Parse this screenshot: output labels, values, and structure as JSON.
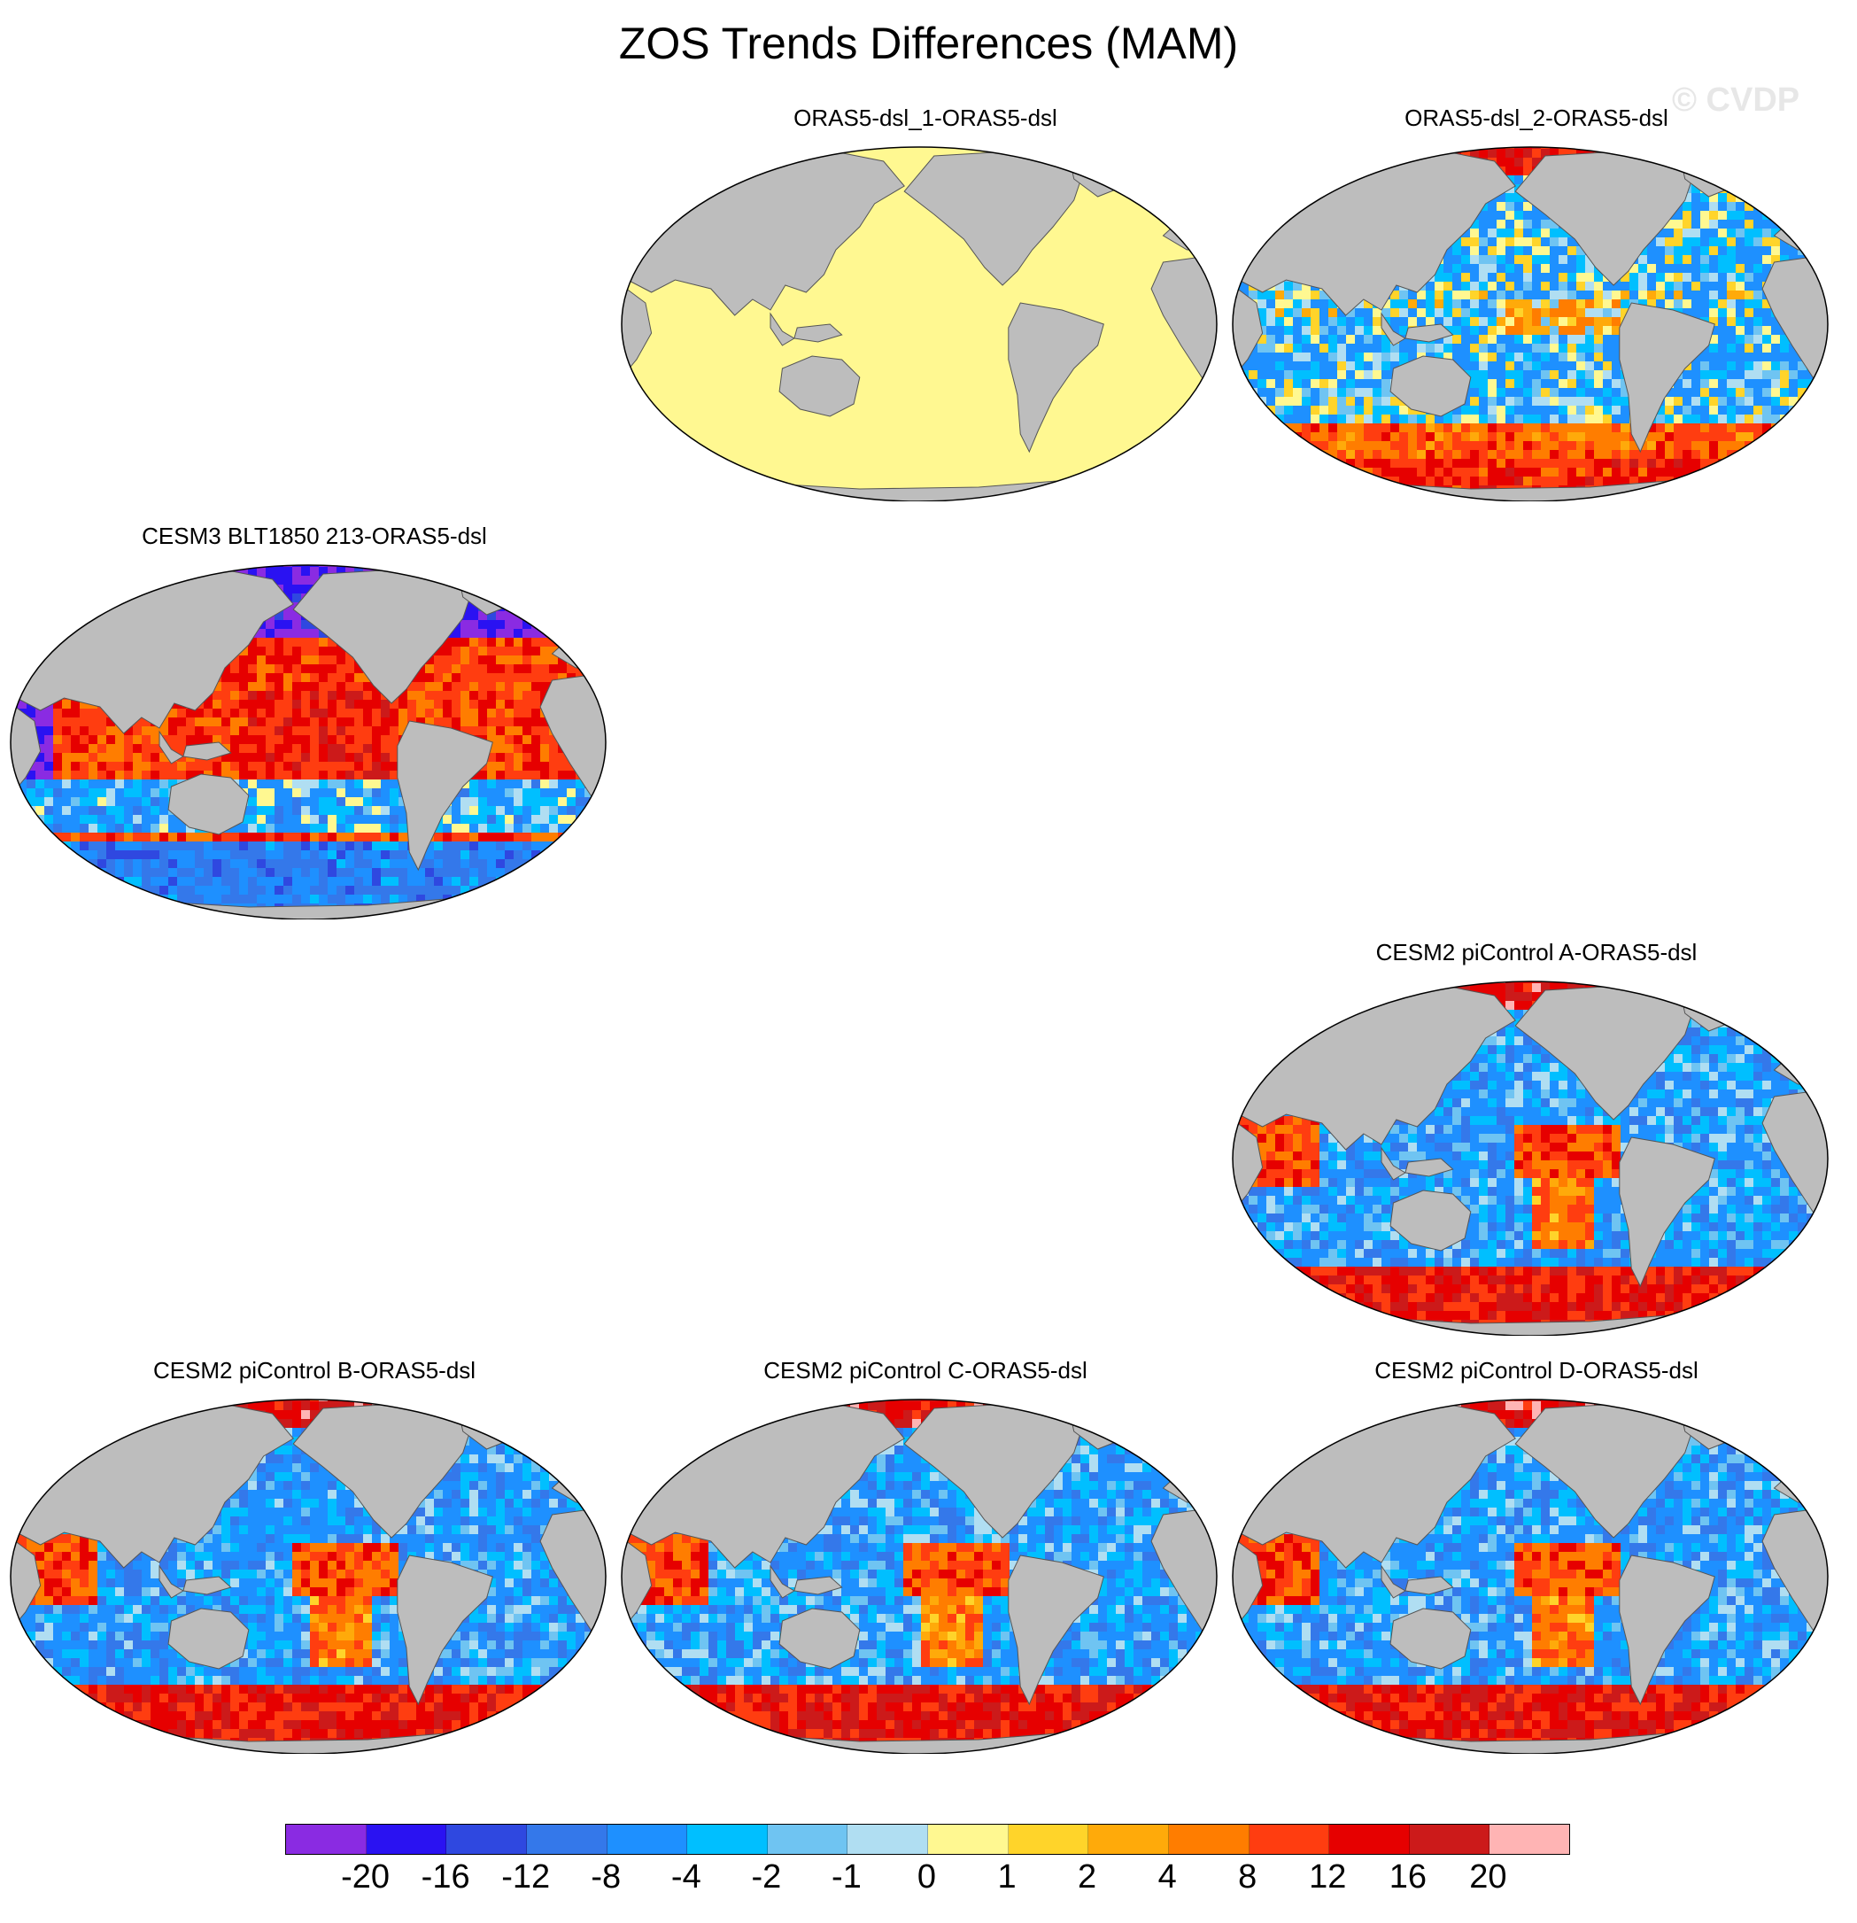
{
  "title": "ZOS Trends Differences (MAM)",
  "watermark": "© CVDP",
  "colors": {
    "land": "#bdbdbd",
    "ocean_zero": "#fff891",
    "missing": "#ffffff",
    "outline": "#000000"
  },
  "panels": [
    {
      "id": "p1",
      "label": "ORAS5-dsl_1-ORAS5-dsl",
      "pattern": "zero"
    },
    {
      "id": "p2",
      "label": "ORAS5-dsl_2-ORAS5-dsl",
      "pattern": "oras2"
    },
    {
      "id": "p3",
      "label": "CESM3 BLT1850 213-ORAS5-dsl",
      "pattern": "cesm3"
    },
    {
      "id": "p4",
      "label": "CESM2 piControl A-ORAS5-dsl",
      "pattern": "cesm2"
    },
    {
      "id": "p5",
      "label": "CESM2 piControl B-ORAS5-dsl",
      "pattern": "cesm2"
    },
    {
      "id": "p6",
      "label": "CESM2 piControl C-ORAS5-dsl",
      "pattern": "cesm2"
    },
    {
      "id": "p7",
      "label": "CESM2 piControl D-ORAS5-dsl",
      "pattern": "cesm2"
    }
  ],
  "colorbar": {
    "colors": [
      "#8a2be2",
      "#2a12f2",
      "#2f48e0",
      "#3478ea",
      "#1e90ff",
      "#00bfff",
      "#6fc4f2",
      "#b0def2",
      "#fff891",
      "#ffd42a",
      "#ffaa0a",
      "#ff7d00",
      "#ff3d10",
      "#e60000",
      "#cc1a1a",
      "#ffb4b4"
    ],
    "labels": [
      "-20",
      "-16",
      "-12",
      "-8",
      "-4",
      "-2",
      "-1",
      "0",
      "1",
      "2",
      "4",
      "8",
      "12",
      "16",
      "20"
    ]
  }
}
